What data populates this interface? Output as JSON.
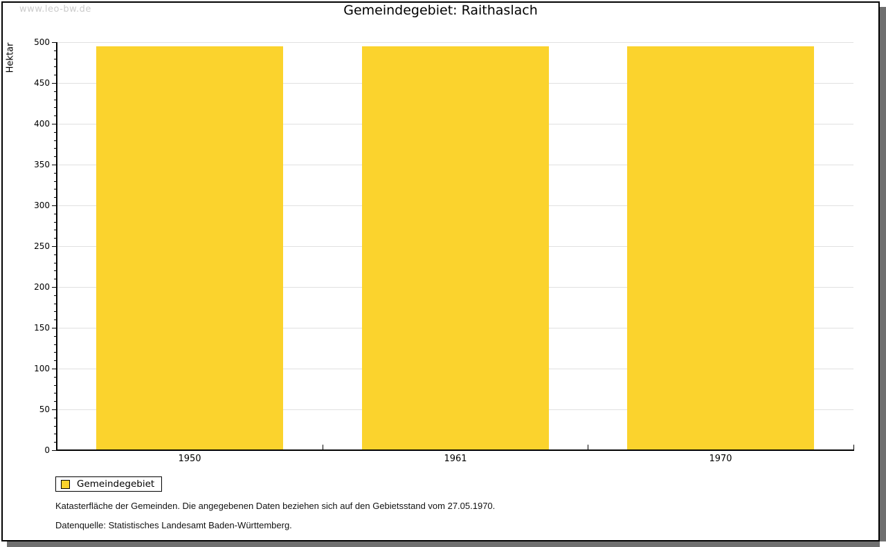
{
  "page": {
    "watermark": "www.leo-bw.de",
    "title": "Gemeindegebiet: Raithaslach"
  },
  "chart_data": {
    "type": "bar",
    "title": "Gemeindegebiet: Raithaslach",
    "categories": [
      "1950",
      "1961",
      "1970"
    ],
    "series": [
      {
        "name": "Gemeindegebiet",
        "color": "#fbd32d",
        "values": [
          495,
          495,
          495
        ]
      }
    ],
    "xlabel": "",
    "ylabel": "Hektar",
    "ylim": [
      0,
      500
    ],
    "ytick_step": 50,
    "yminor_step": 10,
    "grid": true,
    "legend_position": "bottom-left"
  },
  "legend": {
    "items": [
      {
        "label": "Gemeindegebiet",
        "color": "#fbd32d"
      }
    ]
  },
  "footer": {
    "line1": "Katasterfläche der Gemeinden. Die angegebenen Daten beziehen sich auf den Gebietsstand vom 27.05.1970.",
    "line2": "Datenquelle: Statistisches Landesamt Baden-Württemberg."
  },
  "colors": {
    "bar": "#fbd32d",
    "gridline": "#e0e0e0",
    "axis": "#000000",
    "text": "#000000",
    "watermark": "#cbcbcb",
    "frame_shadow": "#6f6f6f",
    "background": "#ffffff"
  }
}
